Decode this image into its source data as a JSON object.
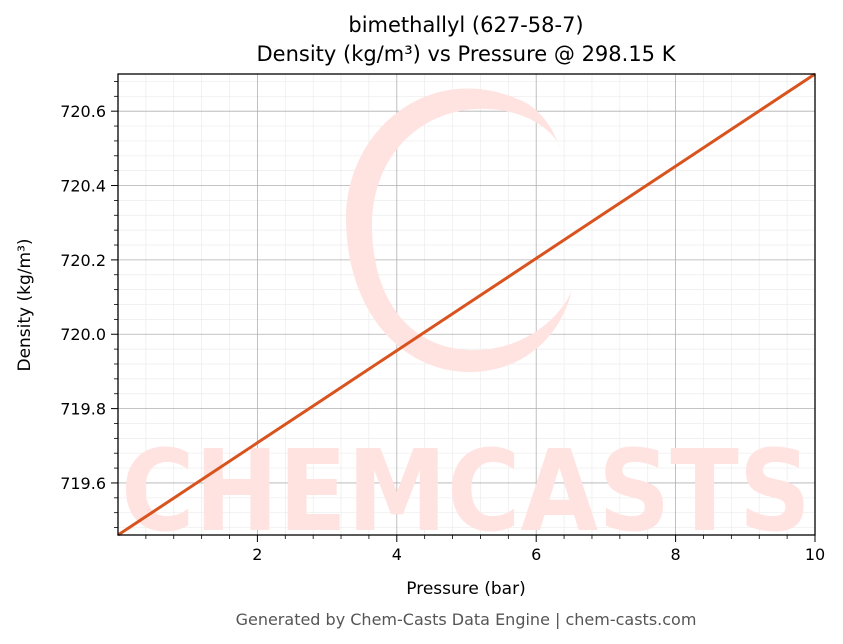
{
  "chart_data": {
    "type": "line",
    "title_line1": "bimethallyl (627-58-7)",
    "title_line2": "Density (kg/m³) vs Pressure @ 298.15 K",
    "xlabel": "Pressure (bar)",
    "ylabel": "Density (kg/m³)",
    "xlim": [
      0.0,
      10.0
    ],
    "ylim": [
      719.46,
      720.7
    ],
    "x_ticks": [
      2,
      4,
      6,
      8,
      10
    ],
    "y_ticks": [
      719.6,
      719.8,
      720.0,
      720.2,
      720.4,
      720.6
    ],
    "x_tick_labels": [
      "2",
      "4",
      "6",
      "8",
      "10"
    ],
    "y_tick_labels": [
      "719.6",
      "719.8",
      "720.0",
      "720.2",
      "720.4",
      "720.6"
    ],
    "grid": true,
    "series": [
      {
        "color": "#d9531e",
        "x": [
          0.0,
          1.0,
          2.0,
          3.0,
          4.0,
          5.0,
          6.0,
          7.0,
          8.0,
          9.0,
          10.0
        ],
        "y": [
          719.46,
          719.584,
          719.708,
          719.832,
          719.956,
          720.08,
          720.204,
          720.328,
          720.452,
          720.576,
          720.7
        ]
      }
    ]
  },
  "watermark": {
    "text": "CHEMCASTS",
    "color": "#ffe3e0"
  },
  "footer": "Generated by Chem-Casts Data Engine | chem-casts.com"
}
